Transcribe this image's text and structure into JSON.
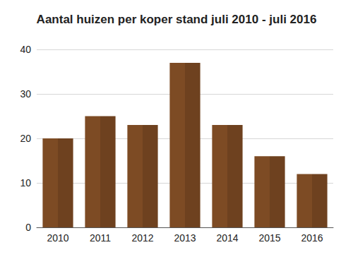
{
  "chart_data": {
    "type": "bar",
    "title": "Aantal huizen per koper stand juli 2010 - juli 2016",
    "categories": [
      "2010",
      "2011",
      "2012",
      "2013",
      "2014",
      "2015",
      "2016"
    ],
    "values": [
      20,
      25,
      23,
      37,
      23,
      16,
      12
    ],
    "color": "#6e411f",
    "ylim": [
      0,
      40
    ],
    "yticks": [
      0,
      10,
      20,
      30,
      40
    ],
    "grid": true
  }
}
